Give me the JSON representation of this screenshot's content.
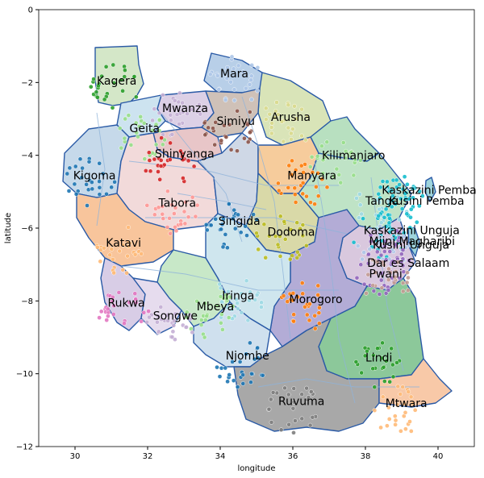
{
  "chart_data": {
    "type": "scatter",
    "xlabel": "longitude",
    "ylabel": "latitude",
    "xlim": [
      29,
      41
    ],
    "ylim": [
      -12,
      0
    ],
    "xticks": [
      "30",
      "32",
      "34",
      "36",
      "38",
      "40"
    ],
    "yticks": [
      "0",
      "−2",
      "−4",
      "−6",
      "−8",
      "−10",
      "−12"
    ],
    "grid": false,
    "regions": [
      {
        "name": "Kagera",
        "lon": 30.6,
        "lat": -1.95,
        "color": "#2ca02c"
      },
      {
        "name": "Mara",
        "lon": 34.0,
        "lat": -1.75,
        "color": "#aec7e8"
      },
      {
        "name": "Mwanza",
        "lon": 32.4,
        "lat": -2.7,
        "color": "#c5b0d5"
      },
      {
        "name": "Simiyu",
        "lon": 33.9,
        "lat": -3.05,
        "color": "#8c564b"
      },
      {
        "name": "Arusha",
        "lon": 35.4,
        "lat": -2.95,
        "color": "#dbdb8d"
      },
      {
        "name": "Geita",
        "lon": 31.5,
        "lat": -3.25,
        "color": "#98df8a"
      },
      {
        "name": "Shinyanga",
        "lon": 32.2,
        "lat": -3.95,
        "color": "#d62728"
      },
      {
        "name": "Kilimanjaro",
        "lon": 36.8,
        "lat": -4.0,
        "color": "#98df8a"
      },
      {
        "name": "Kigoma",
        "lon": 29.95,
        "lat": -4.55,
        "color": "#1f77b4"
      },
      {
        "name": "Manyara",
        "lon": 35.85,
        "lat": -4.55,
        "color": "#ff7f0e"
      },
      {
        "name": "Kaskazini Pemba",
        "lon": 38.45,
        "lat": -4.95,
        "color": "#17becf"
      },
      {
        "name": "Tanga",
        "lon": 38.0,
        "lat": -5.25,
        "color": "#9edae5"
      },
      {
        "name": "Kusini Pemba",
        "lon": 38.65,
        "lat": -5.25,
        "color": "#17becf"
      },
      {
        "name": "Tabora",
        "lon": 32.3,
        "lat": -5.3,
        "color": "#ff9896"
      },
      {
        "name": "Singida",
        "lon": 33.95,
        "lat": -5.8,
        "color": "#1f77b4"
      },
      {
        "name": "Dodoma",
        "lon": 35.3,
        "lat": -6.1,
        "color": "#bcbd22"
      },
      {
        "name": "Kaskazini Unguja",
        "lon": 37.95,
        "lat": -6.05,
        "color": "#17becf"
      },
      {
        "name": "Mjini Magharibi",
        "lon": 38.1,
        "lat": -6.35,
        "color": "#aec7e8"
      },
      {
        "name": "Kusini Unguja",
        "lon": 38.2,
        "lat": -6.45,
        "color": "#9467bd"
      },
      {
        "name": "Katavi",
        "lon": 30.85,
        "lat": -6.4,
        "color": "#ffbb78"
      },
      {
        "name": "Dar es Salaam",
        "lon": 38.05,
        "lat": -6.95,
        "color": "#9467bd"
      },
      {
        "name": "Pwani",
        "lon": 38.1,
        "lat": -7.25,
        "color": "#c49c94"
      },
      {
        "name": "Iringa",
        "lon": 34.05,
        "lat": -7.85,
        "color": "#9edae5"
      },
      {
        "name": "Morogoro",
        "lon": 35.9,
        "lat": -7.95,
        "color": "#ff7f0e"
      },
      {
        "name": "Rukwa",
        "lon": 30.9,
        "lat": -8.05,
        "color": "#e377c2"
      },
      {
        "name": "Mbeya",
        "lon": 33.35,
        "lat": -8.15,
        "color": "#98df8a"
      },
      {
        "name": "Songwe",
        "lon": 32.15,
        "lat": -8.4,
        "color": "#c5b0d5"
      },
      {
        "name": "Njombe",
        "lon": 34.15,
        "lat": -9.5,
        "color": "#1f77b4"
      },
      {
        "name": "Lindi",
        "lon": 38.0,
        "lat": -9.55,
        "color": "#2ca02c"
      },
      {
        "name": "Ruvuma",
        "lon": 35.6,
        "lat": -10.75,
        "color": "#7f7f7f"
      },
      {
        "name": "Mtwara",
        "lon": 38.55,
        "lat": -10.8,
        "color": "#ffbb78"
      }
    ]
  }
}
